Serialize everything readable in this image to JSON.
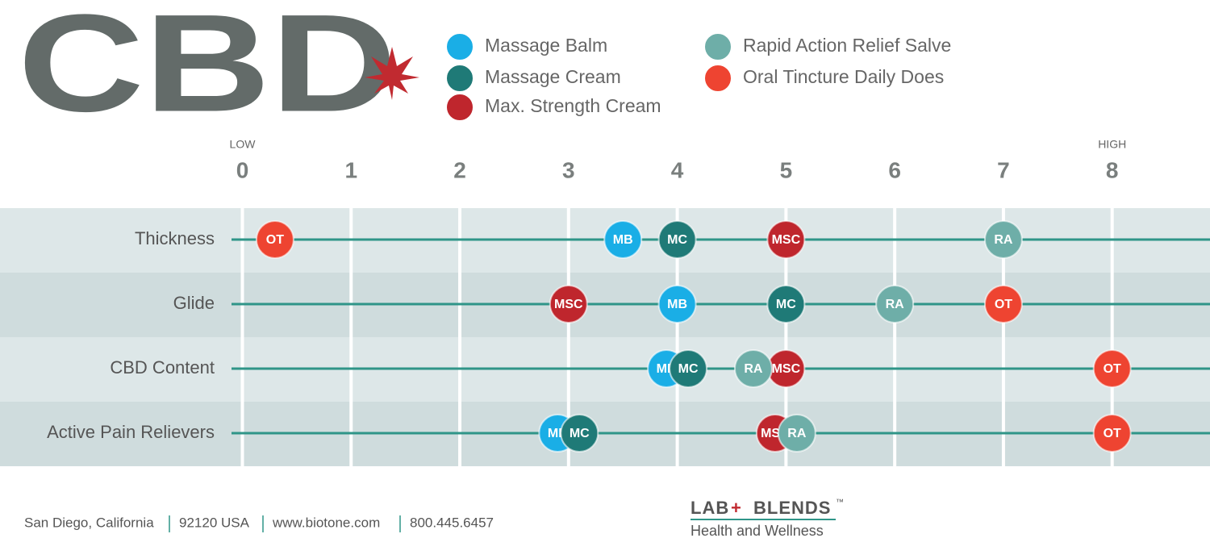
{
  "logo": "CBD",
  "chart_data": {
    "type": "dot",
    "categories": [
      "Thickness",
      "Glide",
      "CBD Content",
      "Active Pain Relievers"
    ],
    "series": [
      {
        "name": "Massage Balm",
        "label": "MB",
        "color": "#1aaee6",
        "values": [
          3.5,
          4,
          3.9,
          2.9
        ]
      },
      {
        "name": "Massage Cream",
        "label": "MC",
        "color": "#1f7a77",
        "values": [
          4,
          5,
          4.1,
          3.1
        ]
      },
      {
        "name": "Max. Strength Cream",
        "label": "MSC",
        "color": "#bf262d",
        "values": [
          5,
          3,
          5,
          4.9
        ]
      },
      {
        "name": "Rapid Action Relief Salve",
        "label": "RA",
        "color": "#6eaea8",
        "values": [
          7,
          6,
          4.7,
          5.1
        ]
      },
      {
        "name": "Oral Tincture Daily Does",
        "label": "OT",
        "color": "#ee4431",
        "values": [
          0.3,
          7,
          8,
          8
        ]
      }
    ],
    "xlim": [
      -0.1,
      8.9
    ],
    "xticks": [
      0,
      1,
      2,
      3,
      4,
      5,
      6,
      7,
      8
    ],
    "low_label": "LOW",
    "high_label": "HIGH",
    "grid": true
  },
  "footer": {
    "address": [
      "San Diego, California",
      "92120 USA",
      "www.biotone.com",
      "800.445.6457"
    ],
    "brand": [
      "LAB",
      "+",
      "BLENDS"
    ],
    "trademark": "™",
    "tagline": "Health and Wellness"
  }
}
